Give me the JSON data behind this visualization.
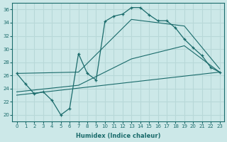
{
  "background_color": "#cce8e8",
  "grid_color": "#b8d8d8",
  "line_color": "#1a6b6b",
  "xlabel": "Humidex (Indice chaleur)",
  "xlim": [
    -0.5,
    23.5
  ],
  "ylim": [
    19,
    37
  ],
  "xticks": [
    0,
    1,
    2,
    3,
    4,
    5,
    6,
    7,
    8,
    9,
    10,
    11,
    12,
    13,
    14,
    15,
    16,
    17,
    18,
    19,
    20,
    21,
    22,
    23
  ],
  "yticks": [
    20,
    22,
    24,
    26,
    28,
    30,
    32,
    34,
    36
  ],
  "series_main": [
    [
      0,
      26.3
    ],
    [
      1,
      24.7
    ],
    [
      2,
      23.2
    ],
    [
      3,
      23.5
    ],
    [
      4,
      22.2
    ],
    [
      5,
      20.0
    ],
    [
      6,
      21.0
    ],
    [
      7,
      29.3
    ],
    [
      8,
      26.3
    ],
    [
      9,
      25.3
    ],
    [
      10,
      34.2
    ],
    [
      11,
      35.0
    ],
    [
      12,
      35.3
    ],
    [
      13,
      36.3
    ],
    [
      14,
      36.3
    ],
    [
      15,
      35.2
    ],
    [
      16,
      34.3
    ],
    [
      17,
      34.3
    ],
    [
      18,
      33.2
    ],
    [
      19,
      31.5
    ],
    [
      20,
      30.2
    ],
    [
      21,
      29.0
    ],
    [
      22,
      27.2
    ],
    [
      23,
      26.5
    ]
  ],
  "series_upper": [
    [
      0,
      26.3
    ],
    [
      7,
      26.5
    ],
    [
      13,
      34.5
    ],
    [
      19,
      33.5
    ],
    [
      23,
      27.0
    ]
  ],
  "series_mid": [
    [
      0,
      23.5
    ],
    [
      7,
      24.5
    ],
    [
      13,
      28.5
    ],
    [
      19,
      30.5
    ],
    [
      23,
      26.5
    ]
  ],
  "series_lower": [
    [
      0,
      23.0
    ],
    [
      23,
      26.5
    ]
  ]
}
